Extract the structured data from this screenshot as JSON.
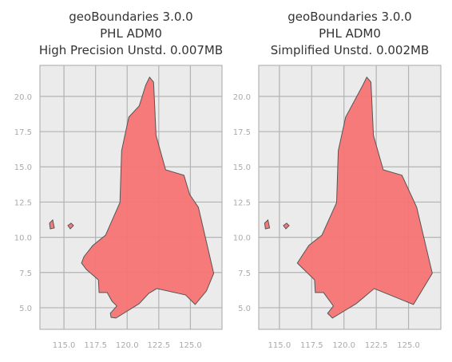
{
  "chart_data": [
    {
      "type": "map",
      "title": [
        "geoBoundaries 3.0.0",
        "PHL ADM0",
        "High Precision Unstd. 0.007MB"
      ],
      "xlim": [
        113.1,
        127.5
      ],
      "ylim": [
        3.47,
        22.2
      ],
      "xticks": [
        {
          "value": 115,
          "label": "115.0"
        },
        117.5,
        {
          "value": 120,
          "label": "120.0"
        },
        122.5,
        {
          "value": 125,
          "label": "125.0"
        }
      ],
      "yticks": [
        {
          "value": 5,
          "label": "5.0"
        },
        7.5,
        {
          "value": 10,
          "label": "10.0"
        },
        12.5,
        {
          "value": 15,
          "label": "15.0"
        },
        17.5,
        {
          "value": 20,
          "label": "20.0"
        }
      ],
      "grid": true,
      "color": "#f87474",
      "polygons": [
        {
          "x": [
            121.77,
            122.09,
            122.28,
            123.04,
            124.49,
            124.94,
            125.63,
            126.84,
            126.27,
            125.38,
            124.62,
            122.34,
            121.71,
            120.95,
            119.11,
            118.73,
            118.67,
            119.18,
            118.8,
            118.42,
            117.78,
            117.72,
            116.77,
            116.39,
            116.58,
            117.28,
            118.29,
            119.43,
            119.56,
            120.13,
            120.95,
            121.46
          ],
          "y": [
            21.36,
            21.02,
            17.23,
            14.79,
            14.4,
            13.04,
            12.13,
            7.44,
            6.19,
            5.23,
            5.91,
            6.36,
            6.02,
            5.29,
            4.27,
            4.32,
            4.61,
            5.12,
            5.46,
            6.08,
            6.08,
            6.98,
            7.72,
            8.17,
            8.62,
            9.42,
            10.15,
            12.47,
            16.15,
            18.53,
            19.32,
            20.79
          ]
        },
        {
          "x": [
            113.86,
            114.11,
            114.24,
            113.92
          ],
          "y": [
            11.0,
            11.23,
            10.66,
            10.6
          ]
        },
        {
          "x": [
            115.31,
            115.56,
            115.75,
            115.5
          ],
          "y": [
            10.83,
            11.0,
            10.83,
            10.6
          ]
        }
      ]
    },
    {
      "type": "map",
      "title": [
        "geoBoundaries 3.0.0",
        "PHL ADM0",
        "Simplified Unstd. 0.002MB"
      ],
      "xlim": [
        113.4,
        127.5
      ],
      "ylim": [
        3.47,
        22.2
      ],
      "xticks": [
        {
          "value": 115,
          "label": "115.0"
        },
        117.5,
        {
          "value": 120,
          "label": "120.0"
        },
        122.5,
        {
          "value": 125,
          "label": "125.0"
        }
      ],
      "yticks": [
        {
          "value": 5,
          "label": "5.0"
        },
        7.5,
        {
          "value": 10,
          "label": "10.0"
        },
        12.5,
        {
          "value": 15,
          "label": "15.0"
        },
        17.5,
        {
          "value": 20,
          "label": "20.0"
        }
      ],
      "grid": true,
      "color": "#f87474",
      "polygons": [
        {
          "x": [
            121.77,
            122.09,
            122.28,
            123.04,
            124.49,
            125.63,
            126.84,
            125.38,
            122.34,
            120.95,
            119.11,
            118.73,
            119.18,
            118.42,
            117.78,
            117.72,
            116.39,
            117.28,
            118.29,
            119.43,
            119.56,
            120.13,
            121.46
          ],
          "y": [
            21.36,
            21.02,
            17.23,
            14.79,
            14.4,
            12.13,
            7.44,
            5.23,
            6.36,
            5.29,
            4.27,
            4.61,
            5.12,
            6.08,
            6.08,
            6.98,
            8.17,
            9.42,
            10.15,
            12.47,
            16.15,
            18.53,
            20.79
          ]
        },
        {
          "x": [
            113.86,
            114.11,
            114.24,
            113.92
          ],
          "y": [
            11.0,
            11.23,
            10.66,
            10.6
          ]
        },
        {
          "x": [
            115.31,
            115.56,
            115.75,
            115.5
          ],
          "y": [
            10.83,
            11.0,
            10.83,
            10.6
          ]
        }
      ]
    }
  ]
}
